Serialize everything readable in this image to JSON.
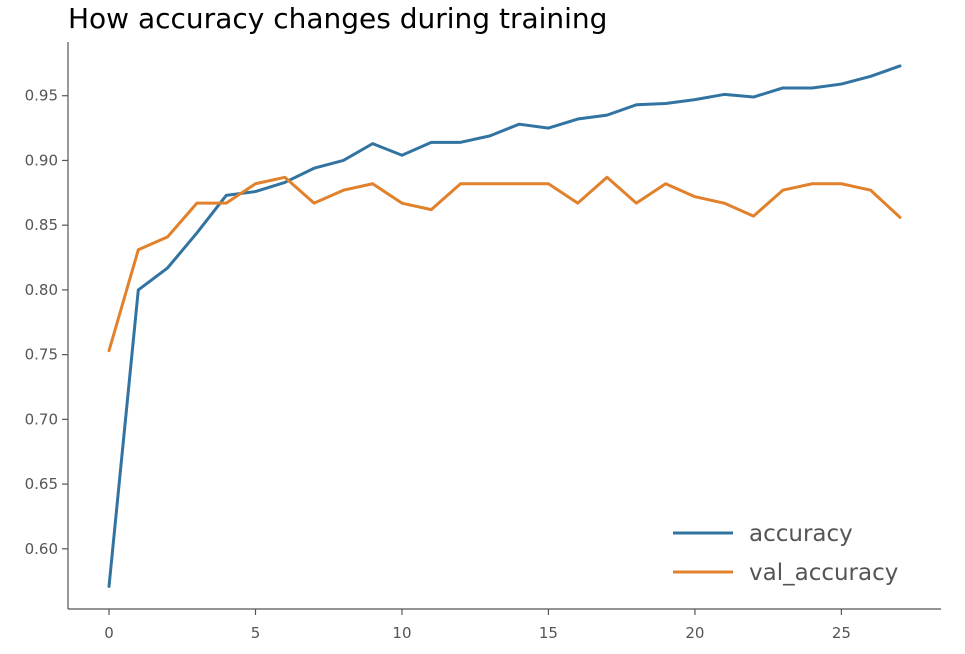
{
  "chart_data": {
    "type": "line",
    "title": "How accuracy changes during training",
    "xlabel": "",
    "ylabel": "",
    "xlim": [
      -1.4,
      28.4
    ],
    "ylim": [
      0.5535,
      0.9915
    ],
    "x_ticks": [
      0,
      5,
      10,
      15,
      20,
      25
    ],
    "x_tick_labels": [
      "0",
      "5",
      "10",
      "15",
      "20",
      "25"
    ],
    "y_ticks": [
      0.6,
      0.65,
      0.7,
      0.75,
      0.8,
      0.85,
      0.9,
      0.95
    ],
    "y_tick_labels": [
      "0.60",
      "0.65",
      "0.70",
      "0.75",
      "0.80",
      "0.85",
      "0.90",
      "0.95"
    ],
    "grid": false,
    "legend_position": "lower-right",
    "x": [
      0,
      1,
      2,
      3,
      4,
      5,
      6,
      7,
      8,
      9,
      10,
      11,
      12,
      13,
      14,
      15,
      16,
      17,
      18,
      19,
      20,
      21,
      22,
      23,
      24,
      25,
      26,
      27
    ],
    "series": [
      {
        "name": "accuracy",
        "color": "#3274a1",
        "values": [
          0.571,
          0.8,
          0.817,
          0.844,
          0.873,
          0.876,
          0.883,
          0.894,
          0.9,
          0.913,
          0.904,
          0.914,
          0.914,
          0.919,
          0.928,
          0.925,
          0.932,
          0.935,
          0.943,
          0.944,
          0.947,
          0.951,
          0.949,
          0.956,
          0.956,
          0.959,
          0.965,
          0.973
        ]
      },
      {
        "name": "val_accuracy",
        "color": "#e1812c",
        "values": [
          0.753,
          0.831,
          0.841,
          0.867,
          0.867,
          0.882,
          0.887,
          0.867,
          0.877,
          0.882,
          0.867,
          0.862,
          0.882,
          0.882,
          0.882,
          0.882,
          0.867,
          0.887,
          0.867,
          0.882,
          0.872,
          0.867,
          0.857,
          0.877,
          0.882,
          0.882,
          0.877,
          0.856
        ]
      }
    ]
  }
}
